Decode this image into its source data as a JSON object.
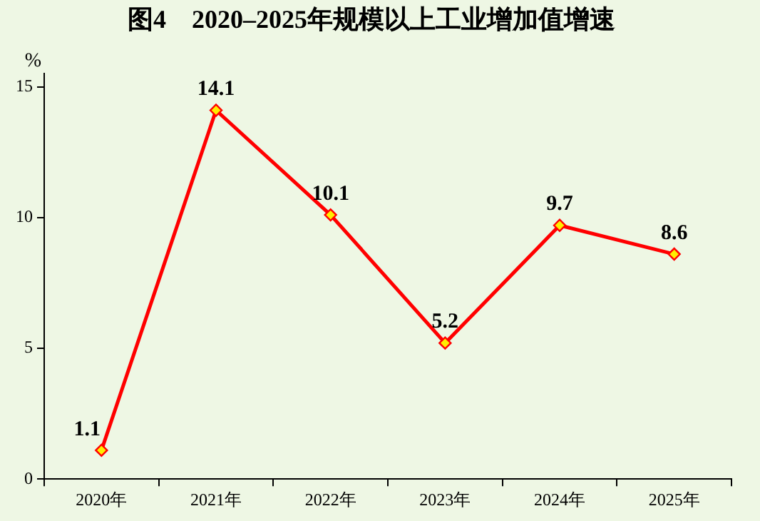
{
  "chart_data": {
    "type": "line",
    "title": "图4　2020–2025年规模以上工业增加值增速",
    "ylabel": "%",
    "categories": [
      "2020年",
      "2021年",
      "2022年",
      "2023年",
      "2024年",
      "2025年"
    ],
    "series": [
      {
        "color": "#ff0000",
        "values": [
          1.1,
          14.1,
          10.1,
          5.2,
          9.7,
          8.6
        ]
      }
    ],
    "ylim": [
      0,
      15.5
    ],
    "yticks": [
      0,
      5,
      10,
      15
    ],
    "grid": false,
    "legend": false,
    "marker": "diamond",
    "line_style": "solid",
    "data_labels": true
  }
}
